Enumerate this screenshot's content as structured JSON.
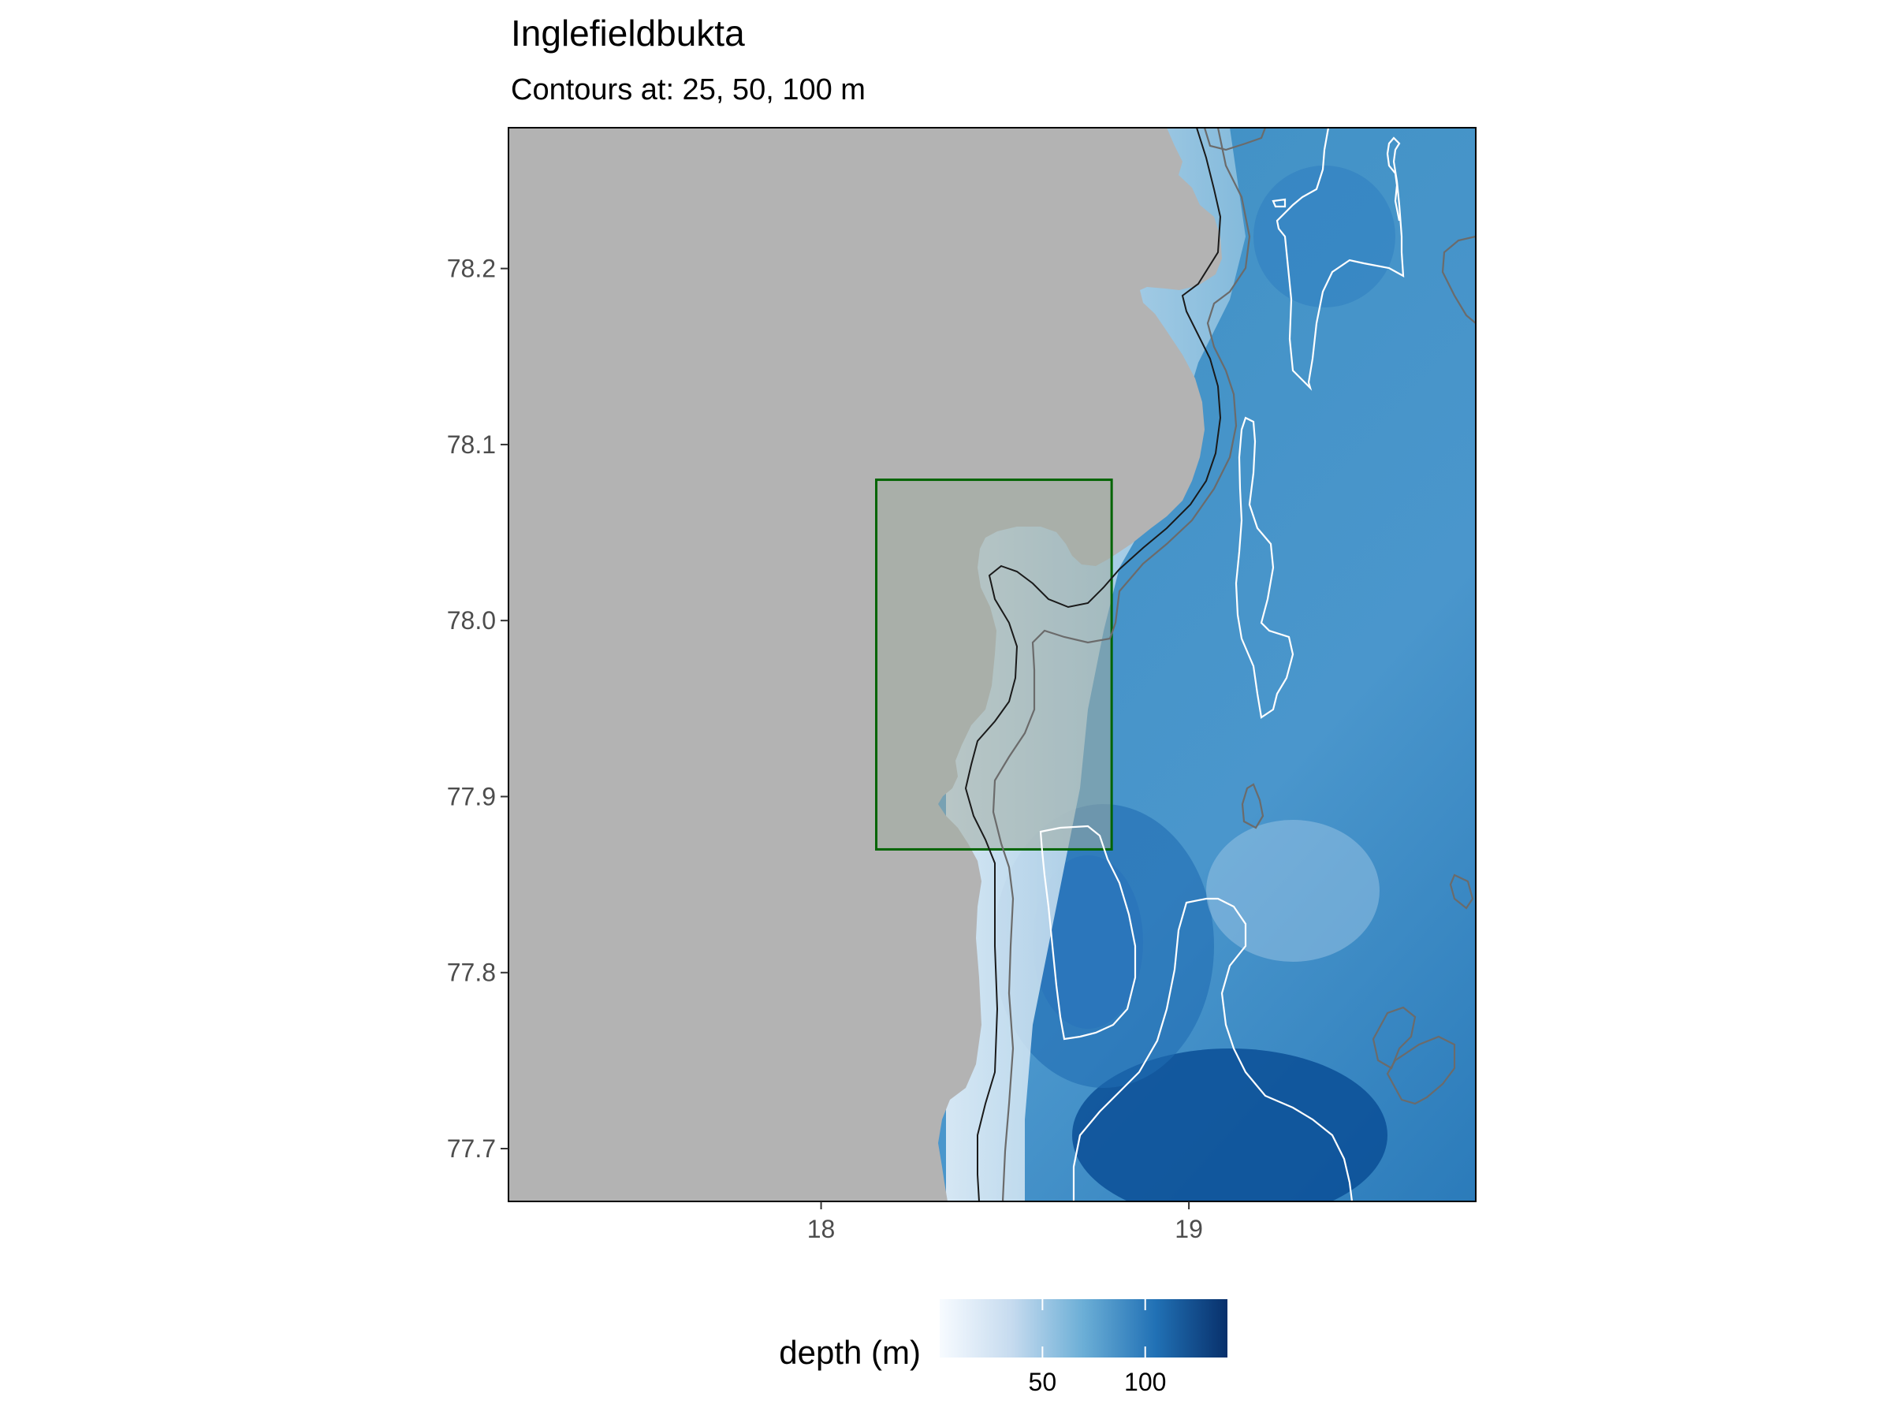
{
  "title": "Inglefieldbukta",
  "subtitle": "Contours at: 25, 50, 100 m",
  "xaxis": {
    "ticks": [
      {
        "value": 18,
        "label": "18"
      },
      {
        "value": 19,
        "label": "19"
      }
    ],
    "range": [
      17.15,
      19.78
    ]
  },
  "yaxis": {
    "ticks": [
      {
        "value": 78.2,
        "label": "78.2"
      },
      {
        "value": 78.1,
        "label": "78.1"
      },
      {
        "value": 78.0,
        "label": "78.0"
      },
      {
        "value": 77.9,
        "label": "77.9"
      },
      {
        "value": 77.8,
        "label": "77.8"
      },
      {
        "value": 77.7,
        "label": "77.7"
      }
    ],
    "range": [
      77.67,
      78.28
    ]
  },
  "contour_levels_m": [
    25,
    50,
    100
  ],
  "study_area": {
    "lon_range": [
      18.15,
      18.79
    ],
    "lat_range": [
      77.87,
      78.08
    ],
    "color": "#006400"
  },
  "legend": {
    "title": "depth (m)",
    "ticks": [
      {
        "value": 50,
        "label": "50"
      },
      {
        "value": 100,
        "label": "100"
      }
    ],
    "range": [
      0,
      140
    ],
    "colors": [
      "#f7fbff",
      "#c6dbef",
      "#6baed6",
      "#2171b5",
      "#08306b"
    ]
  },
  "colors": {
    "land": "#b3b3b3",
    "coastline": "#000000",
    "contour_25": "#1a1a1a",
    "contour_50": "#6b6b6b",
    "contour_100": "#ffffff"
  }
}
